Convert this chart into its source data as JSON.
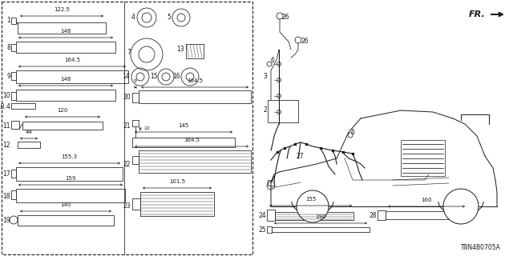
{
  "bg_color": "#ffffff",
  "diagram_code": "T8N4B0705A",
  "fig_width": 6.4,
  "fig_height": 3.2,
  "dpi": 100,
  "gray": "#1a1a1a",
  "lw": 0.55,
  "fs": 5.0,
  "label_fs": 5.5
}
